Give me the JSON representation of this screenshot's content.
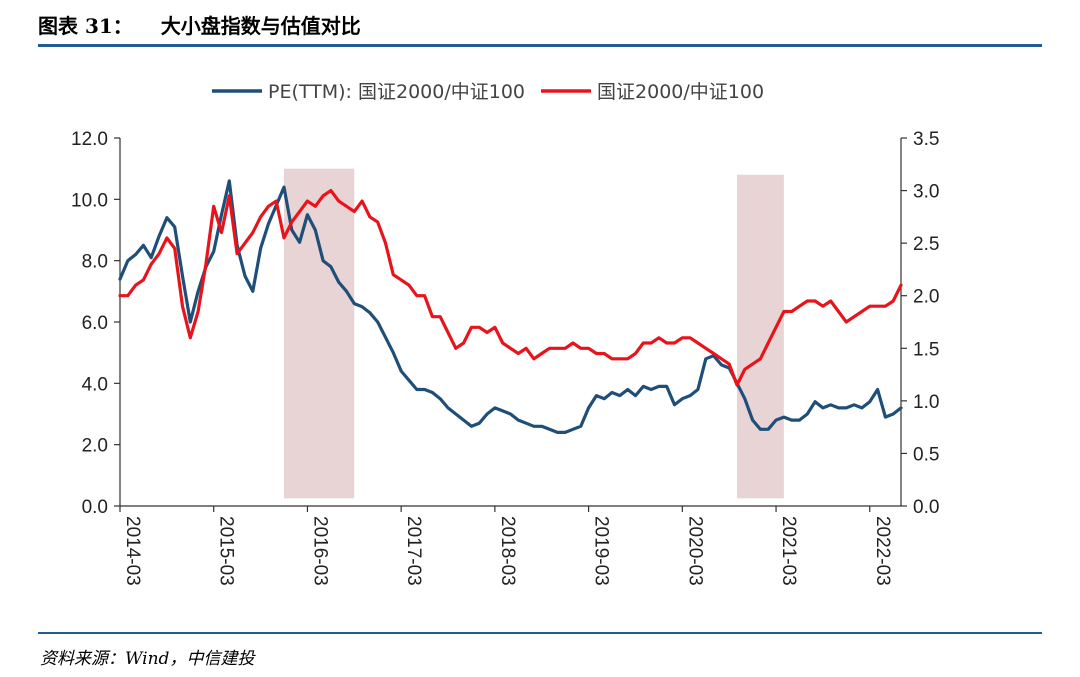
{
  "figure": {
    "number_label": "图表 31：",
    "title": "大小盘指数与估值对比",
    "source": "资料来源：Wind，中信建投"
  },
  "chart_data": {
    "type": "line",
    "title": "",
    "xlabel": "",
    "ylabel_left": "",
    "ylabel_right": "",
    "ylim_left": [
      0,
      12
    ],
    "ylim_right": [
      0,
      3.5
    ],
    "yticks_left": [
      "0.0",
      "2.0",
      "4.0",
      "6.0",
      "8.0",
      "10.0",
      "12.0"
    ],
    "yticks_right": [
      "0.0",
      "0.5",
      "1.0",
      "1.5",
      "2.0",
      "2.5",
      "3.0",
      "3.5"
    ],
    "xticks": [
      "2014-03",
      "2015-03",
      "2016-03",
      "2017-03",
      "2018-03",
      "2019-03",
      "2020-03",
      "2021-03",
      "2022-03"
    ],
    "x_range": [
      "2014-03",
      "2022-07"
    ],
    "legend_position": "top-center",
    "shaded_periods": [
      {
        "start": "2015-12",
        "end": "2016-09",
        "top": 11.0
      },
      {
        "start": "2020-10",
        "end": "2021-04",
        "top": 10.8
      }
    ],
    "series": [
      {
        "name": "PE(TTM): 国证2000/中证100",
        "axis": "left",
        "color": "#1f4e79",
        "x": [
          "2014-03",
          "2014-04",
          "2014-05",
          "2014-06",
          "2014-07",
          "2014-08",
          "2014-09",
          "2014-10",
          "2014-11",
          "2014-12",
          "2015-01",
          "2015-02",
          "2015-03",
          "2015-04",
          "2015-05",
          "2015-06",
          "2015-07",
          "2015-08",
          "2015-09",
          "2015-10",
          "2015-11",
          "2015-12",
          "2016-01",
          "2016-02",
          "2016-03",
          "2016-04",
          "2016-05",
          "2016-06",
          "2016-07",
          "2016-08",
          "2016-09",
          "2016-10",
          "2016-11",
          "2016-12",
          "2017-01",
          "2017-02",
          "2017-03",
          "2017-04",
          "2017-05",
          "2017-06",
          "2017-07",
          "2017-08",
          "2017-09",
          "2017-10",
          "2017-11",
          "2017-12",
          "2018-01",
          "2018-02",
          "2018-03",
          "2018-04",
          "2018-05",
          "2018-06",
          "2018-07",
          "2018-08",
          "2018-09",
          "2018-10",
          "2018-11",
          "2018-12",
          "2019-01",
          "2019-02",
          "2019-03",
          "2019-04",
          "2019-05",
          "2019-06",
          "2019-07",
          "2019-08",
          "2019-09",
          "2019-10",
          "2019-11",
          "2019-12",
          "2020-01",
          "2020-02",
          "2020-03",
          "2020-04",
          "2020-05",
          "2020-06",
          "2020-07",
          "2020-08",
          "2020-09",
          "2020-10",
          "2020-11",
          "2020-12",
          "2021-01",
          "2021-02",
          "2021-03",
          "2021-04",
          "2021-05",
          "2021-06",
          "2021-07",
          "2021-08",
          "2021-09",
          "2021-10",
          "2021-11",
          "2021-12",
          "2022-01",
          "2022-02",
          "2022-03",
          "2022-04",
          "2022-05",
          "2022-06",
          "2022-07"
        ],
        "values": [
          7.4,
          8.0,
          8.2,
          8.5,
          8.1,
          8.8,
          9.4,
          9.1,
          7.5,
          6.0,
          7.0,
          7.8,
          8.3,
          9.5,
          10.6,
          8.5,
          7.5,
          7.0,
          8.4,
          9.2,
          9.8,
          10.4,
          9.0,
          8.6,
          9.5,
          9.0,
          8.0,
          7.8,
          7.3,
          7.0,
          6.6,
          6.5,
          6.3,
          6.0,
          5.5,
          5.0,
          4.4,
          4.1,
          3.8,
          3.8,
          3.7,
          3.5,
          3.2,
          3.0,
          2.8,
          2.6,
          2.7,
          3.0,
          3.2,
          3.1,
          3.0,
          2.8,
          2.7,
          2.6,
          2.6,
          2.5,
          2.4,
          2.4,
          2.5,
          2.6,
          3.2,
          3.6,
          3.5,
          3.7,
          3.6,
          3.8,
          3.6,
          3.9,
          3.8,
          3.9,
          3.9,
          3.3,
          3.5,
          3.6,
          3.8,
          4.8,
          4.9,
          4.6,
          4.5,
          4.0,
          3.5,
          2.8,
          2.5,
          2.5,
          2.8,
          2.9,
          2.8,
          2.8,
          3.0,
          3.4,
          3.2,
          3.3,
          3.2,
          3.2,
          3.3,
          3.2,
          3.4,
          3.8,
          2.9,
          3.0,
          3.2
        ]
      },
      {
        "name": "国证2000/中证100",
        "axis": "right",
        "color": "#e8141c",
        "x": [
          "2014-03",
          "2014-04",
          "2014-05",
          "2014-06",
          "2014-07",
          "2014-08",
          "2014-09",
          "2014-10",
          "2014-11",
          "2014-12",
          "2015-01",
          "2015-02",
          "2015-03",
          "2015-04",
          "2015-05",
          "2015-06",
          "2015-07",
          "2015-08",
          "2015-09",
          "2015-10",
          "2015-11",
          "2015-12",
          "2016-01",
          "2016-02",
          "2016-03",
          "2016-04",
          "2016-05",
          "2016-06",
          "2016-07",
          "2016-08",
          "2016-09",
          "2016-10",
          "2016-11",
          "2016-12",
          "2017-01",
          "2017-02",
          "2017-03",
          "2017-04",
          "2017-05",
          "2017-06",
          "2017-07",
          "2017-08",
          "2017-09",
          "2017-10",
          "2017-11",
          "2017-12",
          "2018-01",
          "2018-02",
          "2018-03",
          "2018-04",
          "2018-05",
          "2018-06",
          "2018-07",
          "2018-08",
          "2018-09",
          "2018-10",
          "2018-11",
          "2018-12",
          "2019-01",
          "2019-02",
          "2019-03",
          "2019-04",
          "2019-05",
          "2019-06",
          "2019-07",
          "2019-08",
          "2019-09",
          "2019-10",
          "2019-11",
          "2019-12",
          "2020-01",
          "2020-02",
          "2020-03",
          "2020-04",
          "2020-05",
          "2020-06",
          "2020-07",
          "2020-08",
          "2020-09",
          "2020-10",
          "2020-11",
          "2020-12",
          "2021-01",
          "2021-02",
          "2021-03",
          "2021-04",
          "2021-05",
          "2021-06",
          "2021-07",
          "2021-08",
          "2021-09",
          "2021-10",
          "2021-11",
          "2021-12",
          "2022-01",
          "2022-02",
          "2022-03",
          "2022-04",
          "2022-05",
          "2022-06",
          "2022-07"
        ],
        "values": [
          2.0,
          2.0,
          2.1,
          2.15,
          2.3,
          2.4,
          2.55,
          2.45,
          1.9,
          1.6,
          1.85,
          2.3,
          2.85,
          2.6,
          2.95,
          2.4,
          2.5,
          2.6,
          2.75,
          2.85,
          2.9,
          2.55,
          2.7,
          2.8,
          2.9,
          2.85,
          2.95,
          3.0,
          2.9,
          2.85,
          2.8,
          2.9,
          2.75,
          2.7,
          2.5,
          2.2,
          2.15,
          2.1,
          2.0,
          2.0,
          1.8,
          1.8,
          1.65,
          1.5,
          1.55,
          1.7,
          1.7,
          1.65,
          1.7,
          1.55,
          1.5,
          1.45,
          1.5,
          1.4,
          1.45,
          1.5,
          1.5,
          1.5,
          1.55,
          1.5,
          1.5,
          1.45,
          1.45,
          1.4,
          1.4,
          1.4,
          1.45,
          1.55,
          1.55,
          1.6,
          1.55,
          1.55,
          1.6,
          1.6,
          1.55,
          1.5,
          1.45,
          1.4,
          1.35,
          1.15,
          1.3,
          1.35,
          1.4,
          1.55,
          1.7,
          1.85,
          1.85,
          1.9,
          1.95,
          1.95,
          1.9,
          1.95,
          1.85,
          1.75,
          1.8,
          1.85,
          1.9,
          1.9,
          1.9,
          1.95,
          2.1
        ]
      }
    ]
  }
}
